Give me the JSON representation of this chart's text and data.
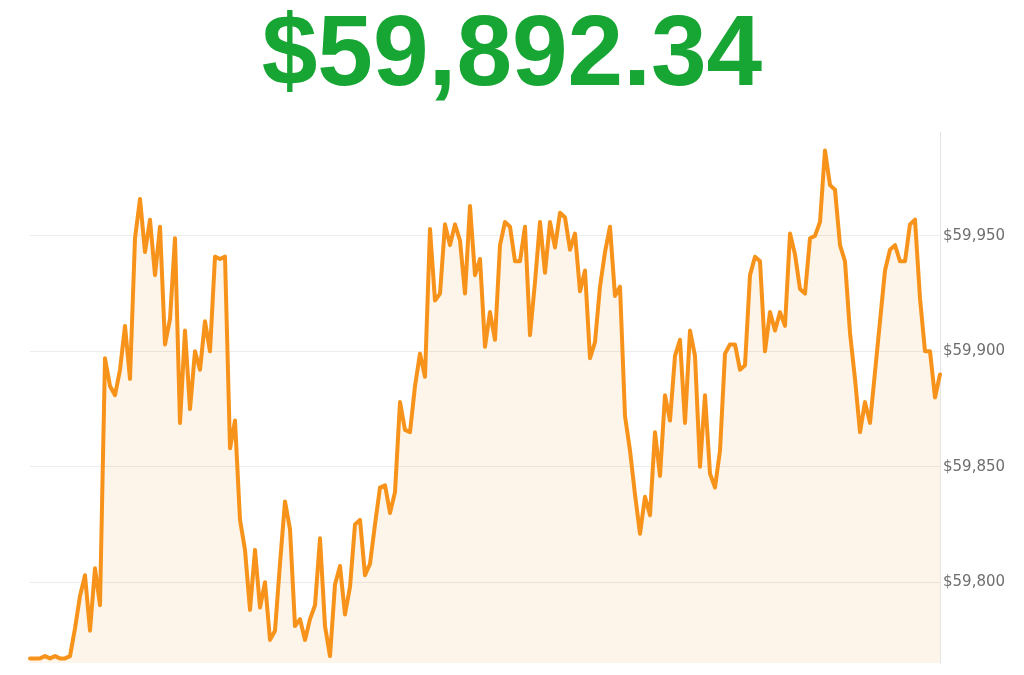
{
  "chart_data": {
    "type": "area",
    "title": "$59,892.34",
    "categories": [
      null,
      null,
      null,
      null,
      null,
      null,
      null,
      null,
      null,
      null,
      null,
      null,
      null,
      null,
      null,
      null,
      null,
      null,
      null,
      null,
      null,
      null,
      null,
      null,
      null,
      null,
      null,
      null,
      null,
      null,
      null,
      null,
      null,
      null,
      null,
      null,
      null,
      null,
      null,
      null,
      null,
      null,
      null,
      null,
      null,
      null,
      null,
      null,
      null,
      null,
      null,
      null,
      null,
      null,
      null,
      null,
      null,
      null,
      null,
      null,
      null,
      null,
      null,
      null,
      null,
      null,
      null,
      null,
      null,
      null,
      null,
      null,
      null,
      null,
      null,
      null,
      null,
      null,
      null,
      null,
      null,
      null,
      null,
      null,
      null,
      null,
      null,
      null,
      null,
      null,
      null,
      null,
      null,
      null,
      null,
      null,
      null,
      null,
      null,
      null,
      null,
      null,
      null,
      null,
      null,
      null,
      null,
      null,
      null,
      null,
      null,
      null,
      null,
      null,
      null,
      null,
      null,
      null,
      null,
      null,
      null,
      null,
      null,
      null,
      null,
      null,
      null,
      null,
      null,
      null,
      null,
      null,
      null,
      null,
      null,
      null,
      null,
      null,
      null,
      null,
      null,
      null,
      null,
      null,
      null,
      null,
      null,
      null,
      null,
      null,
      null,
      null,
      null,
      null,
      null,
      null,
      null,
      null,
      null,
      null,
      null,
      null,
      null,
      null,
      null,
      null,
      null,
      null,
      null,
      null,
      null,
      null,
      null,
      null,
      null,
      null,
      null,
      null,
      null,
      null,
      null,
      null,
      null
    ],
    "series": [
      {
        "color": "#f7931a",
        "values": [
          59767,
          59767,
          59767,
          59768,
          59767,
          59768,
          59767,
          59767,
          59768,
          59780,
          59794,
          59803,
          59779,
          59806,
          59790,
          59897,
          59885,
          59881,
          59892,
          59911,
          59888,
          59949,
          59966,
          59943,
          59957,
          59933,
          59954,
          59903,
          59914,
          59949,
          59869,
          59909,
          59875,
          59900,
          59892,
          59913,
          59900,
          59941,
          59940,
          59941,
          59858,
          59870,
          59827,
          59814,
          59788,
          59814,
          59789,
          59800,
          59775,
          59779,
          59808,
          59835,
          59823,
          59781,
          59784,
          59775,
          59784,
          59790,
          59819,
          59781,
          59768,
          59799,
          59807,
          59786,
          59798,
          59825,
          59827,
          59803,
          59808,
          59825,
          59841,
          59842,
          59830,
          59839,
          59878,
          59866,
          59865,
          59885,
          59899,
          59889,
          59953,
          59922,
          59925,
          59955,
          59946,
          59955,
          59948,
          59925,
          59963,
          59933,
          59940,
          59902,
          59917,
          59905,
          59946,
          59956,
          59954,
          59939,
          59939,
          59954,
          59907,
          59930,
          59956,
          59934,
          59956,
          59945,
          59960,
          59958,
          59944,
          59951,
          59926,
          59935,
          59897,
          59904,
          59928,
          59943,
          59954,
          59924,
          59928,
          59872,
          59857,
          59838,
          59821,
          59837,
          59829,
          59865,
          59846,
          59881,
          59870,
          59898,
          59905,
          59869,
          59909,
          59898,
          59850,
          59881,
          59847,
          59841,
          59857,
          59899,
          59903,
          59903,
          59892,
          59894,
          59933,
          59941,
          59939,
          59900,
          59917,
          59909,
          59917,
          59911,
          59951,
          59942,
          59927,
          59925,
          59949,
          59950,
          59956,
          59987,
          59972,
          59970,
          59946,
          59939,
          59908,
          59888,
          59865,
          59878,
          59869,
          59891,
          59913,
          59935,
          59944,
          59946,
          59939,
          59939,
          59955,
          59957,
          59923,
          59900,
          59900,
          59880,
          59890
        ]
      }
    ],
    "ylim": [
      59765,
      59995
    ],
    "yticks": [
      {
        "value": 59800,
        "label": "$59,800"
      },
      {
        "value": 59850,
        "label": "$59,850"
      },
      {
        "value": 59900,
        "label": "$59,900"
      },
      {
        "value": 59950,
        "label": "$59,950"
      }
    ],
    "grid": "y",
    "tick_labels": "y"
  }
}
